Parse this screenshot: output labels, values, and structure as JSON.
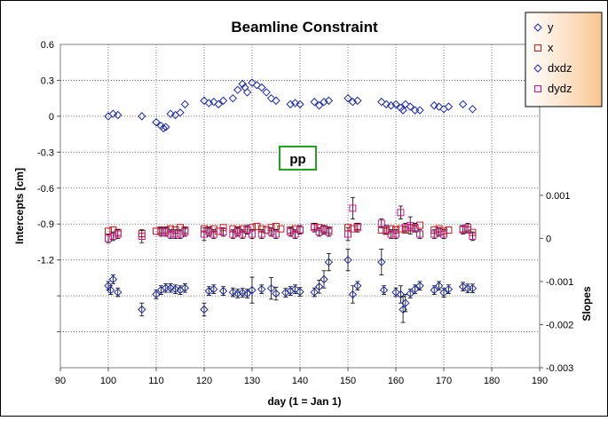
{
  "chart_data": {
    "type": "scatter",
    "title": "Beamline Constraint",
    "xlabel": "day (1 = Jan 1)",
    "ylabel_left": "Intercepts [cm]",
    "ylabel_right": "Slopes",
    "xlim": [
      90,
      190
    ],
    "xticks": [
      90,
      100,
      110,
      120,
      130,
      140,
      150,
      160,
      170,
      180,
      190
    ],
    "ylim_left": [
      -2.1,
      0.6
    ],
    "yticks_left": [
      0.6,
      0.3,
      0,
      -0.3,
      -0.6,
      -0.9,
      -1.2
    ],
    "ylim_right": [
      -0.003,
      0.0045
    ],
    "yticks_right": [
      0.001,
      0,
      -0.001,
      -0.002,
      -0.003
    ],
    "annotation": "pp",
    "grid": "dotted",
    "legend_position": "top-right",
    "series": [
      {
        "name": "y",
        "axis": "left",
        "marker": "diamond",
        "color": "#1c2bb0",
        "x": [
          100,
          101,
          102,
          107,
          110,
          111,
          111.5,
          112,
          113,
          114,
          115,
          116,
          120,
          121,
          122,
          123,
          124,
          126,
          127,
          128,
          128.5,
          129,
          130,
          131,
          132,
          133,
          134,
          135,
          138,
          139,
          140,
          143,
          144,
          145,
          146,
          150,
          151,
          152,
          157,
          158,
          159,
          160,
          161,
          161.5,
          162,
          163,
          164,
          165,
          168,
          169,
          170,
          171,
          174,
          176
        ],
        "y": [
          0,
          0.02,
          0.01,
          0,
          -0.05,
          -0.08,
          -0.1,
          -0.09,
          0.02,
          0.01,
          0.03,
          0.1,
          0.13,
          0.11,
          0.12,
          0.1,
          0.13,
          0.15,
          0.22,
          0.27,
          0.24,
          0.2,
          0.28,
          0.26,
          0.24,
          0.2,
          0.15,
          0.13,
          0.1,
          0.11,
          0.1,
          0.12,
          0.09,
          0.12,
          0.13,
          0.15,
          0.12,
          0.13,
          0.12,
          0.1,
          0.09,
          0.1,
          0.07,
          0.05,
          0.1,
          0.08,
          0.05,
          0.05,
          0.09,
          0.08,
          0.06,
          0.08,
          0.1,
          0.06
        ]
      },
      {
        "name": "x",
        "axis": "left",
        "marker": "square",
        "color": "#c81c1c",
        "x": [
          100,
          101,
          102,
          107,
          110,
          111,
          112,
          113,
          114,
          115,
          116,
          120,
          121,
          122,
          123,
          124,
          126,
          127,
          128,
          129,
          130,
          131,
          132,
          133,
          134,
          135,
          136,
          138,
          139,
          140,
          143,
          144,
          145,
          146,
          150,
          151,
          152,
          157,
          158,
          159,
          160,
          161,
          162,
          163,
          164,
          165,
          168,
          169,
          170,
          171,
          174,
          175,
          176
        ],
        "y": [
          -0.96,
          -0.95,
          -0.97,
          -0.98,
          -0.96,
          -0.95,
          -0.95,
          -0.94,
          -0.95,
          -0.93,
          -0.95,
          -0.94,
          -0.95,
          -0.94,
          -0.96,
          -0.93,
          -0.94,
          -0.95,
          -0.94,
          -0.95,
          -0.93,
          -0.92,
          -0.94,
          -0.95,
          -0.93,
          -0.92,
          -0.94,
          -0.95,
          -0.94,
          -0.95,
          -0.92,
          -0.93,
          -0.94,
          -0.95,
          -0.93,
          -0.94,
          -0.92,
          -0.95,
          -0.96,
          -0.94,
          -0.95,
          -0.94,
          -0.95,
          -0.93,
          -0.94,
          -0.91,
          -0.95,
          -0.94,
          -0.96,
          -0.95,
          -0.94,
          -0.95,
          -0.97
        ]
      },
      {
        "name": "dxdz",
        "axis": "right",
        "marker": "diamond",
        "color": "#1c2bb0",
        "errorbars": true,
        "x": [
          100,
          100.5,
          101,
          102,
          107,
          110,
          111,
          112,
          113,
          114,
          115,
          116,
          120,
          121,
          122,
          124,
          126,
          127,
          128,
          129,
          130,
          132,
          134,
          135,
          137,
          138,
          139,
          140,
          143,
          144,
          145,
          146,
          150,
          151,
          152,
          157,
          157.5,
          160,
          161,
          161.5,
          162,
          163,
          164,
          165,
          168,
          169,
          170,
          171,
          174,
          175,
          176
        ],
        "y": [
          -0.0011,
          -0.0012,
          -0.00095,
          -0.00125,
          -0.00165,
          -0.0013,
          -0.0012,
          -0.00115,
          -0.00115,
          -0.00118,
          -0.0012,
          -0.00115,
          -0.00165,
          -0.00122,
          -0.00118,
          -0.00122,
          -0.00125,
          -0.00128,
          -0.00126,
          -0.00128,
          -0.0012,
          -0.00118,
          -0.00116,
          -0.00128,
          -0.00126,
          -0.00122,
          -0.00118,
          -0.00124,
          -0.00125,
          -0.00112,
          -0.00095,
          -0.00055,
          -0.0005,
          -0.0013,
          -0.0011,
          -0.00055,
          -0.0012,
          -0.00125,
          -0.0013,
          -0.00165,
          -0.0015,
          -0.00128,
          -0.00118,
          -0.0011,
          -0.0012,
          -0.0011,
          -0.00126,
          -0.00118,
          -0.00112,
          -0.00116,
          -0.00116
        ],
        "err": [
          0.0001,
          0.0001,
          0.0001,
          0.0001,
          0.00015,
          0.0001,
          0.0001,
          0.0001,
          0.0001,
          0.0001,
          0.0001,
          0.0001,
          0.00015,
          0.0001,
          0.0001,
          0.0001,
          0.0001,
          0.0001,
          0.0001,
          0.0001,
          0.0003,
          0.0001,
          0.00025,
          0.00015,
          0.0001,
          0.0001,
          0.0001,
          0.0001,
          0.0001,
          0.00015,
          0.0002,
          0.0002,
          0.00025,
          0.0002,
          0.0001,
          0.0003,
          0.0001,
          0.0001,
          0.0002,
          0.0003,
          0.0002,
          0.0001,
          0.0001,
          0.0001,
          0.0001,
          0.0001,
          0.0001,
          0.0001,
          0.0001,
          0.0001,
          0.0001
        ]
      },
      {
        "name": "dydz",
        "axis": "right",
        "marker": "square",
        "color": "#d0148e",
        "errorbars": true,
        "x": [
          100,
          101,
          102,
          107,
          111,
          112,
          113,
          114,
          115,
          116,
          120,
          121,
          122,
          124,
          126,
          127,
          128,
          129,
          130,
          132,
          134,
          135,
          138,
          139,
          140,
          143,
          144,
          145,
          146,
          150,
          151,
          152,
          157,
          158,
          159,
          160,
          161,
          162,
          163,
          164,
          165,
          168,
          169,
          170,
          174,
          175,
          176
        ],
        "y": [
          0,
          5e-05,
          0.0001,
          5e-05,
          0.00015,
          0.00015,
          0.0001,
          0.0001,
          0.0001,
          0.00015,
          0.0001,
          0.00015,
          0.0001,
          0.00015,
          0.0001,
          0.00015,
          0.0001,
          0.0002,
          0.0001,
          0.0001,
          0.00015,
          0.0001,
          0.00015,
          0.0001,
          0.0002,
          0.00025,
          0.00015,
          0.0002,
          0.00015,
          0.0001,
          0.0007,
          0.00025,
          0.00035,
          0.0002,
          0.0001,
          0.0001,
          0.0006,
          0.00025,
          0.0003,
          0.00025,
          0.0001,
          0.0001,
          0.00015,
          0.0001,
          0.0002,
          0.00025,
          5e-05
        ],
        "err": [
          0.0001,
          0.0001,
          0.0001,
          0.00015,
          0.0001,
          0.0001,
          0.0001,
          0.0001,
          0.0001,
          0.0001,
          0.00015,
          0.0001,
          0.0001,
          0.0001,
          0.0001,
          0.0001,
          0.0001,
          0.0001,
          0.0001,
          0.0001,
          0.0001,
          0.0001,
          0.0001,
          0.0001,
          0.0001,
          0.0001,
          0.0001,
          0.0001,
          0.0001,
          0.00015,
          0.00025,
          0.0001,
          0.0001,
          0.0001,
          0.0001,
          0.0001,
          0.00015,
          0.0001,
          0.0002,
          0.0001,
          0.0001,
          0.0001,
          0.0001,
          0.0001,
          0.0001,
          0.0001,
          0.0001
        ]
      }
    ]
  }
}
